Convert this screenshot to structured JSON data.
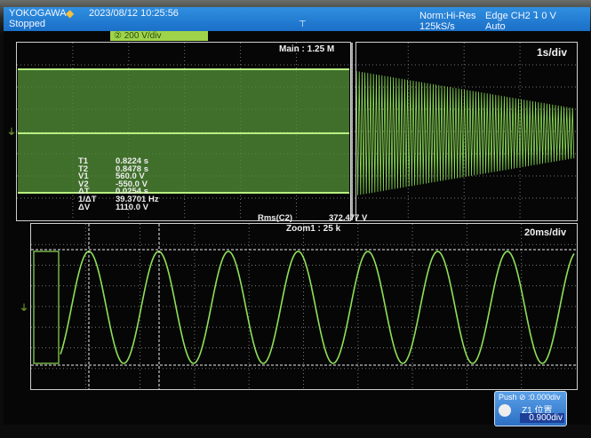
{
  "header": {
    "brand": "YOKOGAWA",
    "datetime": "2023/08/12 10:25:56",
    "status": "Stopped",
    "acq_mode": "Norm:Hi-Res",
    "sample_rate": "125kS/s",
    "trigger": "Edge CH2 ⮧ 0 V",
    "trigger_mode": "Auto"
  },
  "channel": {
    "label": "② 200 V/div",
    "color": "#9fd44a"
  },
  "main_window": {
    "label": "Main : 1.25 M",
    "timebase": "1s/div"
  },
  "zoom_window": {
    "label": "Zoom1 : 25 k",
    "timebase": "20ms/div"
  },
  "measurements": [
    {
      "key": "T1",
      "value": "0.8224 s"
    },
    {
      "key": "T2",
      "value": "0.8478 s"
    },
    {
      "key": "V1",
      "value": "560.0 V"
    },
    {
      "key": "V2",
      "value": "-550.0 V"
    },
    {
      "key": "ΔT",
      "value": "0.0254 s"
    },
    {
      "key": "1/ΔT",
      "value": "39.3701 Hz"
    },
    {
      "key": "ΔV",
      "value": "1110.0 V"
    }
  ],
  "rms": {
    "label": "Rms(C2)",
    "value": "372.477 V"
  },
  "position_dialog": {
    "hint": "Push ⊘ :0.000div",
    "title": "Z1 位置",
    "value": "0.900div"
  },
  "waveform_color": "#8fe05a"
}
